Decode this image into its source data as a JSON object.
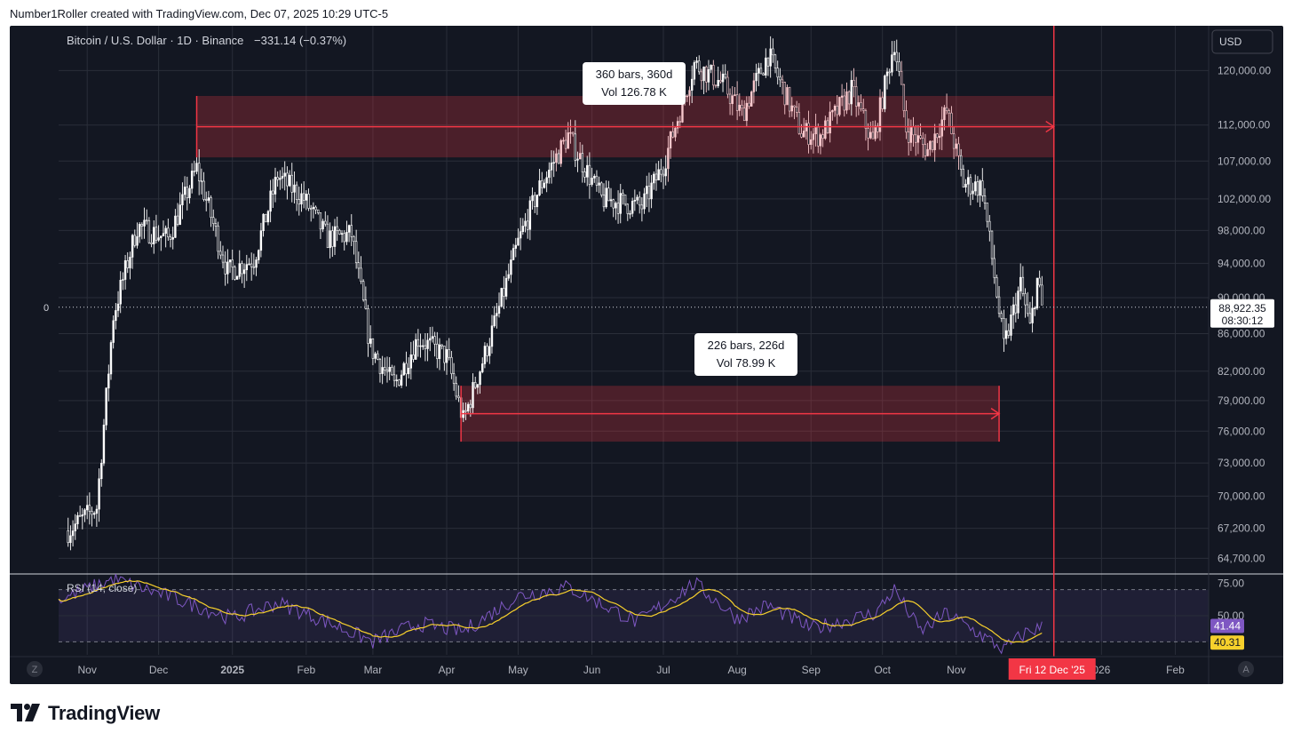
{
  "header": {
    "attribution": "Number1Roller created with TradingView.com, Dec 07, 2025 10:29 UTC-5"
  },
  "symbol": {
    "title": "Bitcoin / U.S. Dollar · 1D · Binance",
    "change": "−331.14 (−0.37%)",
    "currency_button": "USD"
  },
  "price_axis": {
    "ticks": [
      "120,000.00",
      "112,000.00",
      "107,000.00",
      "102,000.00",
      "98,000.00",
      "94,000.00",
      "90,000.00",
      "86,000.00",
      "82,000.00",
      "79,000.00",
      "76,000.00",
      "73,000.00",
      "70,000.00",
      "67,200.00",
      "64,700.00"
    ],
    "current_price": "88,922.35",
    "countdown": "08:30:12",
    "left_zero_label": "0"
  },
  "time_axis": {
    "labels": [
      "Nov",
      "Dec",
      "2025",
      "Feb",
      "Mar",
      "Apr",
      "May",
      "Jun",
      "Jul",
      "Aug",
      "Sep",
      "Oct",
      "Nov",
      "026",
      "Feb"
    ],
    "cursor_label": "Fri 12 Dec '25",
    "left_button": "Z",
    "right_button": "A"
  },
  "measurements": [
    {
      "bars": "360 bars, 360d",
      "vol": "Vol 126.78 K"
    },
    {
      "bars": "226 bars, 226d",
      "vol": "Vol 78.99 K"
    }
  ],
  "rsi": {
    "label": "RSI (14, close)",
    "ticks": [
      "75.00",
      "50.00"
    ],
    "rsi_value": "41.44",
    "ma_value": "40.31",
    "rsi_color": "#7e57c2",
    "ma_color": "#f7d02c"
  },
  "footer": {
    "brand": "TradingView"
  },
  "chart_data": {
    "type": "candlestick",
    "title": "Bitcoin / U.S. Dollar · 1D · Binance",
    "price_scale": "log",
    "ylim": [
      63500,
      127000
    ],
    "x_range": [
      "2024-10-20",
      "2026-02-15"
    ],
    "cursor_date": "2025-12-12",
    "anchors": [
      {
        "date": "2024-10-24",
        "price": 67000
      },
      {
        "date": "2024-11-05",
        "price": 69000
      },
      {
        "date": "2024-11-12",
        "price": 88000
      },
      {
        "date": "2024-11-22",
        "price": 98500
      },
      {
        "date": "2024-12-05",
        "price": 97000
      },
      {
        "date": "2024-12-17",
        "price": 106000
      },
      {
        "date": "2024-12-30",
        "price": 93000
      },
      {
        "date": "2025-01-10",
        "price": 94500
      },
      {
        "date": "2025-01-20",
        "price": 105000
      },
      {
        "date": "2025-01-31",
        "price": 102000
      },
      {
        "date": "2025-02-10",
        "price": 97000
      },
      {
        "date": "2025-02-20",
        "price": 97500
      },
      {
        "date": "2025-02-28",
        "price": 84500
      },
      {
        "date": "2025-03-10",
        "price": 80500
      },
      {
        "date": "2025-03-20",
        "price": 85500
      },
      {
        "date": "2025-04-01",
        "price": 83500
      },
      {
        "date": "2025-04-08",
        "price": 77000
      },
      {
        "date": "2025-04-21",
        "price": 87000
      },
      {
        "date": "2025-05-01",
        "price": 96500
      },
      {
        "date": "2025-05-10",
        "price": 103500
      },
      {
        "date": "2025-05-22",
        "price": 110500
      },
      {
        "date": "2025-06-05",
        "price": 102000
      },
      {
        "date": "2025-06-22",
        "price": 101000
      },
      {
        "date": "2025-07-01",
        "price": 106500
      },
      {
        "date": "2025-07-14",
        "price": 121000
      },
      {
        "date": "2025-07-26",
        "price": 118000
      },
      {
        "date": "2025-08-03",
        "price": 113500
      },
      {
        "date": "2025-08-14",
        "price": 122500
      },
      {
        "date": "2025-08-28",
        "price": 111000
      },
      {
        "date": "2025-09-05",
        "price": 110500
      },
      {
        "date": "2025-09-18",
        "price": 117000
      },
      {
        "date": "2025-09-27",
        "price": 109500
      },
      {
        "date": "2025-10-06",
        "price": 124500
      },
      {
        "date": "2025-10-11",
        "price": 111500
      },
      {
        "date": "2025-10-20",
        "price": 108500
      },
      {
        "date": "2025-10-28",
        "price": 114000
      },
      {
        "date": "2025-11-04",
        "price": 104000
      },
      {
        "date": "2025-11-12",
        "price": 103500
      },
      {
        "date": "2025-11-21",
        "price": 84500
      },
      {
        "date": "2025-11-28",
        "price": 91500
      },
      {
        "date": "2025-12-02",
        "price": 86500
      },
      {
        "date": "2025-12-05",
        "price": 92000
      },
      {
        "date": "2025-12-07",
        "price": 88922
      }
    ],
    "date_ranges": [
      {
        "bars": 360,
        "start": "2024-12-17",
        "end": "2025-12-12",
        "price_from": 107500,
        "price_to": 116200
      },
      {
        "bars": 226,
        "start": "2025-04-07",
        "end": "2025-11-19",
        "price_from": 75000,
        "price_to": 80500
      }
    ],
    "rsi_series": {
      "name": "RSI (14, close)",
      "ylim": [
        20,
        80
      ],
      "band": [
        30,
        70
      ],
      "last_rsi": 41.44,
      "last_ma": 40.31,
      "anchors": [
        {
          "date": "2024-10-20",
          "rsi": 62
        },
        {
          "date": "2024-11-12",
          "rsi": 78
        },
        {
          "date": "2024-12-05",
          "rsi": 65
        },
        {
          "date": "2025-01-01",
          "rsi": 48
        },
        {
          "date": "2025-01-20",
          "rsi": 60
        },
        {
          "date": "2025-02-10",
          "rsi": 45
        },
        {
          "date": "2025-03-01",
          "rsi": 30
        },
        {
          "date": "2025-03-20",
          "rsi": 44
        },
        {
          "date": "2025-04-08",
          "rsi": 38
        },
        {
          "date": "2025-05-01",
          "rsi": 65
        },
        {
          "date": "2025-05-22",
          "rsi": 72
        },
        {
          "date": "2025-06-20",
          "rsi": 45
        },
        {
          "date": "2025-07-14",
          "rsi": 75
        },
        {
          "date": "2025-08-01",
          "rsi": 48
        },
        {
          "date": "2025-08-14",
          "rsi": 58
        },
        {
          "date": "2025-09-01",
          "rsi": 40
        },
        {
          "date": "2025-09-28",
          "rsi": 52
        },
        {
          "date": "2025-10-06",
          "rsi": 70
        },
        {
          "date": "2025-10-17",
          "rsi": 38
        },
        {
          "date": "2025-10-28",
          "rsi": 52
        },
        {
          "date": "2025-11-21",
          "rsi": 24
        },
        {
          "date": "2025-12-01",
          "rsi": 38
        },
        {
          "date": "2025-12-07",
          "rsi": 41
        }
      ]
    }
  }
}
